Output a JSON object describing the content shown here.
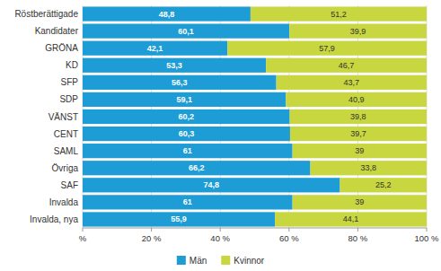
{
  "chart_data": {
    "type": "bar",
    "orientation": "horizontal",
    "stacked": true,
    "categories": [
      "Röstberättigade",
      "Kandidater",
      "GRÖNA",
      "KD",
      "SFP",
      "SDP",
      "VÄNST",
      "CENT",
      "SAML",
      "Övriga",
      "SAF",
      "Invalda",
      "Invalda, nya"
    ],
    "series": [
      {
        "name": "Män",
        "color": "#1d9cd6",
        "values": [
          48.8,
          60.1,
          42.1,
          53.3,
          56.3,
          59.1,
          60.2,
          60.3,
          61.0,
          66.2,
          74.8,
          61.0,
          55.9
        ],
        "value_labels": [
          "48,8",
          "60,1",
          "42,1",
          "53,3",
          "56,3",
          "59,1",
          "60,2",
          "60,3",
          "61",
          "66,2",
          "74,8",
          "61",
          "55,9"
        ]
      },
      {
        "name": "Kvinnor",
        "color": "#c8d63f",
        "values": [
          51.2,
          39.9,
          57.9,
          46.7,
          43.7,
          40.9,
          39.8,
          39.7,
          39.0,
          33.8,
          25.2,
          39.0,
          44.1
        ],
        "value_labels": [
          "51,2",
          "39,9",
          "57,9",
          "46,7",
          "43,7",
          "40,9",
          "39,8",
          "39,7",
          "39",
          "33,8",
          "25,2",
          "39",
          "44,1"
        ]
      }
    ],
    "xlim": [
      0,
      100
    ],
    "xticks": [
      {
        "value": 0,
        "label": "%"
      },
      {
        "value": 20,
        "label": "20 %"
      },
      {
        "value": 40,
        "label": "40 %"
      },
      {
        "value": 60,
        "label": "60 %"
      },
      {
        "value": 80,
        "label": "80 %"
      },
      {
        "value": 100,
        "label": "100 %"
      }
    ],
    "grid": true,
    "legend": "bottom",
    "data_labels": true
  }
}
